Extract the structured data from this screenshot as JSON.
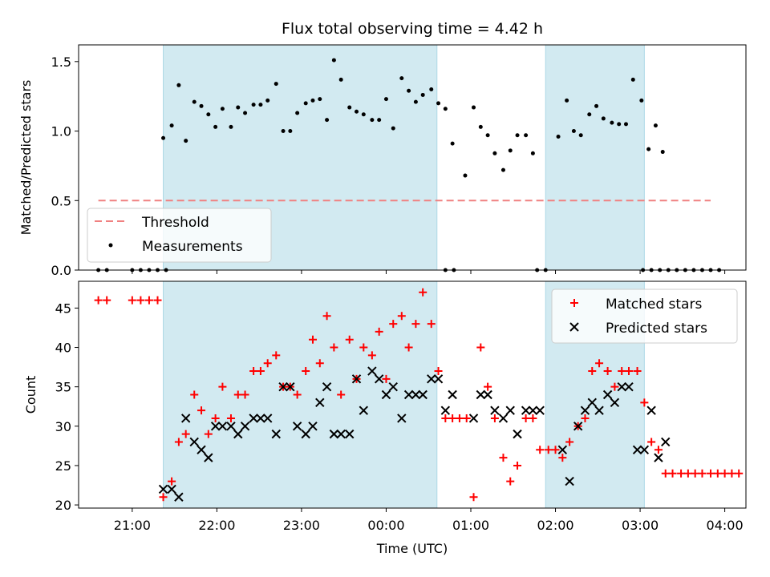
{
  "title": "Flux total observing time = 4.42 h",
  "colors": {
    "shade": "#add8e6",
    "threshold": "#f08080",
    "matched": "#ff0000",
    "predicted": "#000000",
    "measurement": "#000000"
  },
  "chart_data": [
    {
      "type": "scatter",
      "ylabel": "Matched/Predicted stars",
      "ylim": [
        0,
        1.62
      ],
      "yticks": [
        "0.0",
        "0.5",
        "1.0",
        "1.5"
      ],
      "ytick_values": [
        0,
        0.5,
        1.0,
        1.5
      ],
      "legend_placement": "lower-left",
      "legend": [
        "Threshold",
        "Measurements"
      ],
      "shaded_intervals": [
        [
          "21:22",
          "00:36"
        ],
        [
          "01:53",
          "03:03"
        ]
      ],
      "threshold": {
        "name": "Threshold",
        "value": 0.5,
        "x_range": [
          "20:36",
          "03:50"
        ]
      },
      "series": [
        {
          "name": "Measurements",
          "points": [
            [
              "20:36",
              0
            ],
            [
              "20:42",
              0
            ],
            [
              "21:00",
              0
            ],
            [
              "21:06",
              0
            ],
            [
              "21:12",
              0
            ],
            [
              "21:18",
              0
            ],
            [
              "21:24",
              0
            ],
            [
              "21:22",
              0.95
            ],
            [
              "21:28",
              1.04
            ],
            [
              "21:33",
              1.33
            ],
            [
              "21:38",
              0.93
            ],
            [
              "21:44",
              1.21
            ],
            [
              "21:49",
              1.18
            ],
            [
              "21:54",
              1.12
            ],
            [
              "21:59",
              1.03
            ],
            [
              "22:04",
              1.16
            ],
            [
              "22:10",
              1.03
            ],
            [
              "22:15",
              1.17
            ],
            [
              "22:20",
              1.13
            ],
            [
              "22:26",
              1.19
            ],
            [
              "22:31",
              1.19
            ],
            [
              "22:36",
              1.22
            ],
            [
              "22:42",
              1.34
            ],
            [
              "22:47",
              1.0
            ],
            [
              "22:52",
              1.0
            ],
            [
              "22:57",
              1.13
            ],
            [
              "23:03",
              1.2
            ],
            [
              "23:08",
              1.22
            ],
            [
              "23:13",
              1.23
            ],
            [
              "23:18",
              1.08
            ],
            [
              "23:23",
              1.51
            ],
            [
              "23:28",
              1.37
            ],
            [
              "23:34",
              1.17
            ],
            [
              "23:39",
              1.14
            ],
            [
              "23:44",
              1.12
            ],
            [
              "23:50",
              1.08
            ],
            [
              "23:55",
              1.08
            ],
            [
              "00:00",
              1.23
            ],
            [
              "00:05",
              1.02
            ],
            [
              "00:11",
              1.38
            ],
            [
              "00:16",
              1.29
            ],
            [
              "00:21",
              1.21
            ],
            [
              "00:26",
              1.26
            ],
            [
              "00:32",
              1.3
            ],
            [
              "00:37",
              1.2
            ],
            [
              "00:42",
              1.16
            ],
            [
              "00:47",
              0.91
            ],
            [
              "00:42",
              0
            ],
            [
              "00:48",
              0
            ],
            [
              "00:56",
              0.68
            ],
            [
              "01:02",
              1.17
            ],
            [
              "01:07",
              1.03
            ],
            [
              "01:12",
              0.97
            ],
            [
              "01:17",
              0.84
            ],
            [
              "01:23",
              0.72
            ],
            [
              "01:28",
              0.86
            ],
            [
              "01:33",
              0.97
            ],
            [
              "01:39",
              0.97
            ],
            [
              "01:44",
              0.84
            ],
            [
              "01:47",
              0
            ],
            [
              "01:53",
              0
            ],
            [
              "02:02",
              0.96
            ],
            [
              "02:08",
              1.22
            ],
            [
              "02:13",
              1.0
            ],
            [
              "02:18",
              0.97
            ],
            [
              "02:24",
              1.12
            ],
            [
              "02:29",
              1.18
            ],
            [
              "02:34",
              1.09
            ],
            [
              "02:40",
              1.06
            ],
            [
              "02:45",
              1.05
            ],
            [
              "02:50",
              1.05
            ],
            [
              "02:55",
              1.37
            ],
            [
              "03:01",
              1.22
            ],
            [
              "03:06",
              0.87
            ],
            [
              "03:11",
              1.04
            ],
            [
              "03:16",
              0.85
            ],
            [
              "03:08",
              0
            ],
            [
              "03:14",
              0
            ],
            [
              "03:20",
              0
            ],
            [
              "03:26",
              0
            ],
            [
              "03:32",
              0
            ],
            [
              "03:38",
              0
            ],
            [
              "03:44",
              0
            ],
            [
              "03:50",
              0
            ],
            [
              "03:56",
              0
            ],
            [
              "03:02",
              0
            ]
          ]
        }
      ]
    },
    {
      "type": "scatter",
      "ylabel": "Count",
      "xlabel": "Time (UTC)",
      "ylim": [
        19.6,
        48.4
      ],
      "yticks": [
        "20",
        "25",
        "30",
        "35",
        "40",
        "45"
      ],
      "ytick_values": [
        20,
        25,
        30,
        35,
        40,
        45
      ],
      "xticks": [
        "21:00",
        "22:00",
        "23:00",
        "00:00",
        "01:00",
        "02:00",
        "03:00",
        "04:00"
      ],
      "xlim": [
        "20:22",
        "04:15"
      ],
      "legend_placement": "top-right",
      "legend": [
        "Matched stars",
        "Predicted stars"
      ],
      "shaded_intervals": [
        [
          "21:22",
          "00:36"
        ],
        [
          "01:53",
          "03:03"
        ]
      ],
      "series": [
        {
          "name": "Matched stars",
          "marker": "plus",
          "points": [
            [
              "20:36",
              46
            ],
            [
              "20:42",
              46
            ],
            [
              "21:00",
              46
            ],
            [
              "21:06",
              46
            ],
            [
              "21:12",
              46
            ],
            [
              "21:18",
              46
            ],
            [
              "21:22",
              21
            ],
            [
              "21:28",
              23
            ],
            [
              "21:33",
              28
            ],
            [
              "21:38",
              29
            ],
            [
              "21:44",
              34
            ],
            [
              "21:49",
              32
            ],
            [
              "21:54",
              29
            ],
            [
              "21:59",
              31
            ],
            [
              "22:04",
              35
            ],
            [
              "22:10",
              31
            ],
            [
              "22:15",
              34
            ],
            [
              "22:20",
              34
            ],
            [
              "22:26",
              37
            ],
            [
              "22:31",
              37
            ],
            [
              "22:36",
              38
            ],
            [
              "22:42",
              39
            ],
            [
              "22:47",
              35
            ],
            [
              "22:52",
              35
            ],
            [
              "22:57",
              34
            ],
            [
              "23:03",
              37
            ],
            [
              "23:08",
              41
            ],
            [
              "23:13",
              38
            ],
            [
              "23:18",
              44
            ],
            [
              "23:23",
              40
            ],
            [
              "23:28",
              34
            ],
            [
              "23:34",
              41
            ],
            [
              "23:39",
              36
            ],
            [
              "23:44",
              40
            ],
            [
              "23:50",
              39
            ],
            [
              "23:55",
              42
            ],
            [
              "00:00",
              36
            ],
            [
              "00:05",
              43
            ],
            [
              "00:11",
              44
            ],
            [
              "00:16",
              40
            ],
            [
              "00:21",
              43
            ],
            [
              "00:26",
              47
            ],
            [
              "00:32",
              43
            ],
            [
              "00:37",
              37
            ],
            [
              "00:42",
              31
            ],
            [
              "00:47",
              31
            ],
            [
              "00:52",
              31
            ],
            [
              "00:57",
              31
            ],
            [
              "01:02",
              21
            ],
            [
              "01:07",
              40
            ],
            [
              "01:12",
              35
            ],
            [
              "01:17",
              31
            ],
            [
              "01:23",
              26
            ],
            [
              "01:28",
              23
            ],
            [
              "01:33",
              25
            ],
            [
              "01:39",
              31
            ],
            [
              "01:44",
              31
            ],
            [
              "01:49",
              27
            ],
            [
              "01:55",
              27
            ],
            [
              "02:00",
              27
            ],
            [
              "02:05",
              26
            ],
            [
              "02:10",
              28
            ],
            [
              "02:16",
              30
            ],
            [
              "02:21",
              31
            ],
            [
              "02:26",
              37
            ],
            [
              "02:31",
              38
            ],
            [
              "02:37",
              37
            ],
            [
              "02:42",
              35
            ],
            [
              "02:47",
              37
            ],
            [
              "02:52",
              37
            ],
            [
              "02:58",
              37
            ],
            [
              "03:03",
              33
            ],
            [
              "03:08",
              28
            ],
            [
              "03:13",
              27
            ],
            [
              "03:18",
              24
            ],
            [
              "03:23",
              24
            ],
            [
              "03:29",
              24
            ],
            [
              "03:34",
              24
            ],
            [
              "03:39",
              24
            ],
            [
              "03:44",
              24
            ],
            [
              "03:50",
              24
            ],
            [
              "03:55",
              24
            ],
            [
              "04:00",
              24
            ],
            [
              "04:05",
              24
            ],
            [
              "04:10",
              24
            ]
          ]
        },
        {
          "name": "Predicted stars",
          "marker": "x",
          "points": [
            [
              "21:22",
              22
            ],
            [
              "21:28",
              22
            ],
            [
              "21:33",
              21
            ],
            [
              "21:38",
              31
            ],
            [
              "21:44",
              28
            ],
            [
              "21:49",
              27
            ],
            [
              "21:54",
              26
            ],
            [
              "21:59",
              30
            ],
            [
              "22:04",
              30
            ],
            [
              "22:10",
              30
            ],
            [
              "22:15",
              29
            ],
            [
              "22:20",
              30
            ],
            [
              "22:26",
              31
            ],
            [
              "22:31",
              31
            ],
            [
              "22:36",
              31
            ],
            [
              "22:42",
              29
            ],
            [
              "22:47",
              35
            ],
            [
              "22:52",
              35
            ],
            [
              "22:57",
              30
            ],
            [
              "23:03",
              29
            ],
            [
              "23:08",
              30
            ],
            [
              "23:13",
              33
            ],
            [
              "23:18",
              35
            ],
            [
              "23:23",
              29
            ],
            [
              "23:28",
              29
            ],
            [
              "23:34",
              29
            ],
            [
              "23:39",
              36
            ],
            [
              "23:44",
              32
            ],
            [
              "23:50",
              37
            ],
            [
              "23:55",
              36
            ],
            [
              "00:00",
              34
            ],
            [
              "00:05",
              35
            ],
            [
              "00:11",
              31
            ],
            [
              "00:16",
              34
            ],
            [
              "00:21",
              34
            ],
            [
              "00:26",
              34
            ],
            [
              "00:32",
              36
            ],
            [
              "00:37",
              36
            ],
            [
              "00:42",
              32
            ],
            [
              "00:47",
              34
            ],
            [
              "01:02",
              31
            ],
            [
              "01:07",
              34
            ],
            [
              "01:12",
              34
            ],
            [
              "01:17",
              32
            ],
            [
              "01:23",
              31
            ],
            [
              "01:28",
              32
            ],
            [
              "01:33",
              29
            ],
            [
              "01:39",
              32
            ],
            [
              "01:44",
              32
            ],
            [
              "01:49",
              32
            ],
            [
              "02:05",
              27
            ],
            [
              "02:10",
              23
            ],
            [
              "02:16",
              30
            ],
            [
              "02:21",
              32
            ],
            [
              "02:26",
              33
            ],
            [
              "02:31",
              32
            ],
            [
              "02:37",
              34
            ],
            [
              "02:42",
              33
            ],
            [
              "02:47",
              35
            ],
            [
              "02:52",
              35
            ],
            [
              "02:58",
              27
            ],
            [
              "03:03",
              27
            ],
            [
              "03:08",
              32
            ],
            [
              "03:13",
              26
            ],
            [
              "03:18",
              28
            ]
          ]
        }
      ]
    }
  ]
}
